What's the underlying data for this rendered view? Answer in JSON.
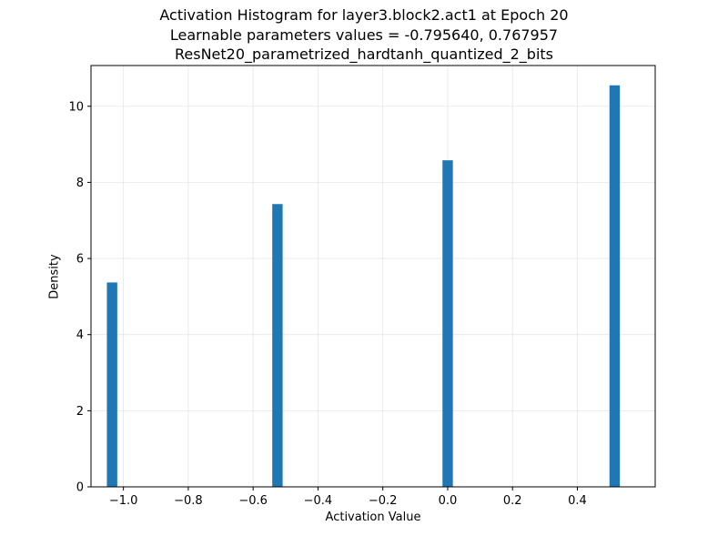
{
  "chart_data": {
    "type": "bar",
    "title_lines": [
      "Activation Histogram for layer3.block2.act1 at Epoch 20",
      "Learnable parameters values = -0.795640, 0.767957",
      "ResNet20_parametrized_hardtanh_quantized_2_bits"
    ],
    "xlabel": "Activation Value",
    "ylabel": "Density",
    "xlim": [
      -1.1,
      0.64
    ],
    "ylim": [
      0,
      11.07
    ],
    "xticks": [
      -1.0,
      -0.8,
      -0.6,
      -0.4,
      -0.2,
      0.0,
      0.2,
      0.4
    ],
    "xtick_labels": [
      "−1.0",
      "−0.8",
      "−0.6",
      "−0.4",
      "−0.2",
      "0.0",
      "0.2",
      "0.4"
    ],
    "yticks": [
      0,
      2,
      4,
      6,
      8,
      10
    ],
    "ytick_labels": [
      "0",
      "2",
      "4",
      "6",
      "8",
      "10"
    ],
    "bin_width": 0.032,
    "bars": [
      {
        "x": -1.035,
        "value": 5.37
      },
      {
        "x": -0.525,
        "value": 7.43
      },
      {
        "x": 0.0,
        "value": 8.58
      },
      {
        "x": 0.515,
        "value": 10.55
      }
    ],
    "bar_color": "#1f77b4",
    "grid": true,
    "legend": "none"
  }
}
